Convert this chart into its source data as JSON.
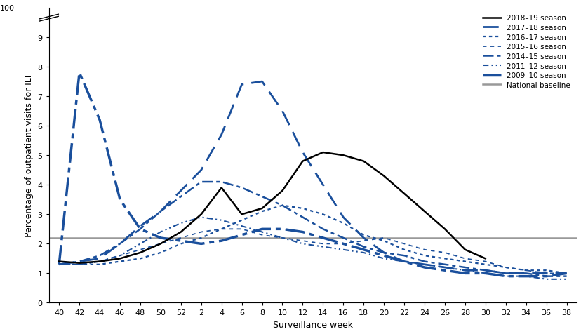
{
  "xlabel": "Surveillance week",
  "ylabel": "Percentage of outpatient visits for ILI",
  "national_baseline": 2.2,
  "blue_color": "#1a4f9c",
  "black_color": "#000000",
  "gray_color": "#999999",
  "xtick_labels": [
    "40",
    "42",
    "44",
    "46",
    "48",
    "50",
    "52",
    "2",
    "4",
    "6",
    "8",
    "10",
    "12",
    "14",
    "16",
    "18",
    "20",
    "22",
    "24",
    "26",
    "28",
    "30",
    "32",
    "34",
    "36",
    "38"
  ],
  "seasons": {
    "2018-19": {
      "color": "#000000",
      "linewidth": 1.8,
      "label": "2018–19 season",
      "data": [
        1.4,
        1.35,
        1.4,
        1.5,
        1.7,
        2.0,
        2.4,
        3.0,
        3.9,
        3.0,
        3.2,
        3.8,
        4.8,
        5.1,
        5.0,
        4.8,
        4.3,
        3.7,
        3.1,
        2.5,
        1.8,
        1.5,
        null,
        null,
        null,
        null
      ]
    },
    "2017-18": {
      "color": "#1a4f9c",
      "linewidth": 2.0,
      "label": "2017–18 season",
      "data": [
        1.3,
        1.4,
        1.5,
        2.0,
        2.6,
        3.1,
        3.8,
        4.5,
        5.7,
        7.4,
        7.5,
        6.5,
        5.1,
        4.0,
        2.9,
        2.2,
        1.7,
        1.4,
        1.3,
        1.2,
        1.1,
        1.1,
        1.0,
        1.0,
        1.0,
        1.0
      ]
    },
    "2016-17": {
      "color": "#1a4f9c",
      "linewidth": 1.6,
      "label": "2016–17 season",
      "data": [
        1.3,
        1.3,
        1.3,
        1.4,
        1.5,
        1.7,
        2.0,
        2.2,
        2.5,
        2.8,
        3.1,
        3.3,
        3.2,
        3.0,
        2.7,
        2.3,
        2.1,
        1.8,
        1.6,
        1.5,
        1.4,
        1.3,
        1.2,
        1.1,
        1.1,
        1.0
      ]
    },
    "2015-16": {
      "color": "#1a4f9c",
      "linewidth": 1.3,
      "label": "2015–16 season",
      "data": [
        1.3,
        1.3,
        1.4,
        1.6,
        1.8,
        2.0,
        2.2,
        2.4,
        2.5,
        2.5,
        2.3,
        2.2,
        2.1,
        2.0,
        2.0,
        2.1,
        2.2,
        2.0,
        1.8,
        1.7,
        1.5,
        1.4,
        1.2,
        1.1,
        1.0,
        1.0
      ]
    },
    "2014-15": {
      "color": "#1a4f9c",
      "linewidth": 1.8,
      "label": "2014–15 season",
      "data": [
        1.3,
        1.4,
        1.6,
        2.0,
        2.5,
        3.1,
        3.6,
        4.1,
        4.1,
        3.9,
        3.6,
        3.3,
        2.9,
        2.5,
        2.2,
        1.9,
        1.7,
        1.6,
        1.4,
        1.3,
        1.2,
        1.1,
        1.0,
        1.0,
        0.9,
        0.9
      ]
    },
    "2011-12": {
      "color": "#1a4f9c",
      "linewidth": 1.5,
      "label": "2011–12 season",
      "data": [
        1.3,
        1.3,
        1.4,
        1.6,
        2.0,
        2.4,
        2.7,
        2.9,
        2.8,
        2.6,
        2.4,
        2.2,
        2.0,
        1.9,
        1.8,
        1.7,
        1.5,
        1.4,
        1.3,
        1.2,
        1.1,
        1.0,
        0.9,
        0.9,
        0.8,
        0.8
      ]
    },
    "2009-10": {
      "color": "#1a4f9c",
      "linewidth": 2.5,
      "label": "2009–10 season",
      "data": [
        1.3,
        7.8,
        6.2,
        3.5,
        2.5,
        2.2,
        2.1,
        2.0,
        2.1,
        2.3,
        2.5,
        2.5,
        2.4,
        2.2,
        2.0,
        1.8,
        1.6,
        1.4,
        1.2,
        1.1,
        1.0,
        1.0,
        0.9,
        0.9,
        0.9,
        1.0
      ]
    }
  }
}
